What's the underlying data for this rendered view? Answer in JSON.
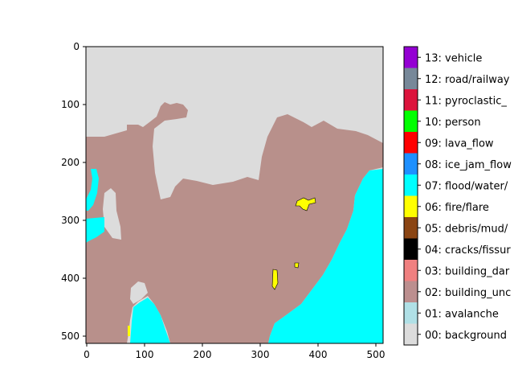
{
  "x_ticks": [
    "0",
    "100",
    "200",
    "300",
    "400",
    "500"
  ],
  "y_ticks": [
    "0",
    "100",
    "200",
    "300",
    "400",
    "500"
  ],
  "colors": {
    "background": "#dcdcdc",
    "building_undamaged": "#b8908b",
    "flood_water": "#00ffff",
    "fire": "#ffff00",
    "cracks": "#000000"
  },
  "legend": [
    {
      "label": "13: vehicle",
      "color": "#9400d3"
    },
    {
      "label": "12: road/railway",
      "color": "#778899"
    },
    {
      "label": "11: pyroclastic_",
      "color": "#dc143c"
    },
    {
      "label": "10: person",
      "color": "#00ff00"
    },
    {
      "label": "09: lava_flow",
      "color": "#ff0000"
    },
    {
      "label": "08: ice_jam_flow",
      "color": "#1e90ff"
    },
    {
      "label": "07: flood/water/",
      "color": "#00ffff"
    },
    {
      "label": "06: fire/flare",
      "color": "#ffff00"
    },
    {
      "label": "05: debris/mud/",
      "color": "#8b4513"
    },
    {
      "label": "04: cracks/fissur",
      "color": "#000000"
    },
    {
      "label": "03: building_dar",
      "color": "#f08080"
    },
    {
      "label": "02: building_unc",
      "color": "#bc8f8f"
    },
    {
      "label": "01: avalanche",
      "color": "#b0e0e6"
    },
    {
      "label": "00: background",
      "color": "#dcdcdc"
    }
  ]
}
